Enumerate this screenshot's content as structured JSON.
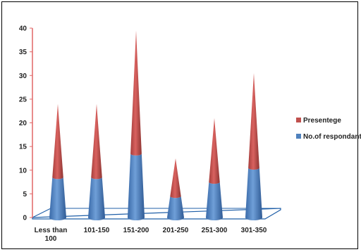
{
  "chart_data": {
    "type": "bar",
    "bar_shape": "cone",
    "stacked": true,
    "categories": [
      "Less than 100",
      "101-150",
      "151-200",
      "201-250",
      "251-300",
      "301-350"
    ],
    "category_lines": [
      [
        "Less than",
        "100"
      ],
      [
        "101-150"
      ],
      [
        "151-200"
      ],
      [
        "201-250"
      ],
      [
        "251-300"
      ],
      [
        "301-350"
      ]
    ],
    "series": [
      {
        "name": "No.of respondant",
        "values": [
          8.5,
          8.5,
          13.5,
          4.5,
          7.5,
          10.5
        ],
        "color": "#4f81bd"
      },
      {
        "name": "Presentege",
        "values": [
          15.5,
          15.5,
          26,
          8,
          13.5,
          20
        ],
        "color": "#c0504d"
      }
    ],
    "yticks": [
      0,
      5,
      10,
      15,
      20,
      25,
      30,
      35,
      40
    ],
    "ylim": [
      0,
      40
    ],
    "grid": false,
    "legend_position": "right",
    "axis_color": "#e06666",
    "floor_color": "#1f5fa8"
  }
}
